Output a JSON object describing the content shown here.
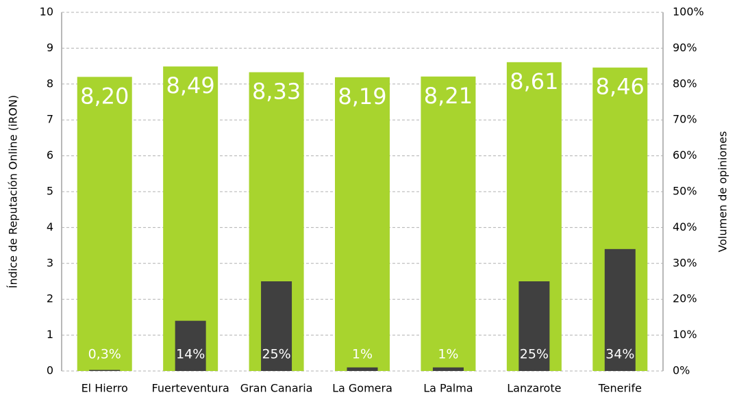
{
  "chart_data": {
    "type": "bar",
    "ylabel": "Índice de Reputación Online (iRON)",
    "y2label": "Volumen de opiniones",
    "categories": [
      "El Hierro",
      "Fuerteventura",
      "Gran Canaria",
      "La Gomera",
      "La Palma",
      "Lanzarote",
      "Tenerife"
    ],
    "series": [
      {
        "color": "#a8d42e",
        "values": [
          8.2,
          8.49,
          8.33,
          8.19,
          8.21,
          8.61,
          8.46
        ],
        "value_labels": [
          "8,20",
          "8,49",
          "8,33",
          "8,19",
          "8,21",
          "8,61",
          "8,46"
        ]
      },
      {
        "color": "#404040",
        "axis": "y2",
        "values": [
          0.3,
          14,
          25,
          1,
          1,
          25,
          34
        ],
        "value_labels": [
          "0,3%",
          "14%",
          "25%",
          "1%",
          "1%",
          "25%",
          "34%"
        ]
      }
    ],
    "ylim": [
      0,
      10
    ],
    "yticks": [
      0,
      1,
      2,
      3,
      4,
      5,
      6,
      7,
      8,
      9,
      10
    ],
    "y2lim": [
      0,
      100
    ],
    "y2ticks": [
      {
        "value": 0,
        "label": "0%"
      },
      {
        "value": 10,
        "label": "10%"
      },
      {
        "value": 20,
        "label": "20%"
      },
      {
        "value": 30,
        "label": "30%"
      },
      {
        "value": 40,
        "label": "40%"
      },
      {
        "value": 50,
        "label": "50%"
      },
      {
        "value": 60,
        "label": "60%"
      },
      {
        "value": 70,
        "label": "70%"
      },
      {
        "value": 80,
        "label": "80%"
      },
      {
        "value": 90,
        "label": "90%"
      },
      {
        "value": 100,
        "label": "100%"
      }
    ],
    "grid": true
  }
}
